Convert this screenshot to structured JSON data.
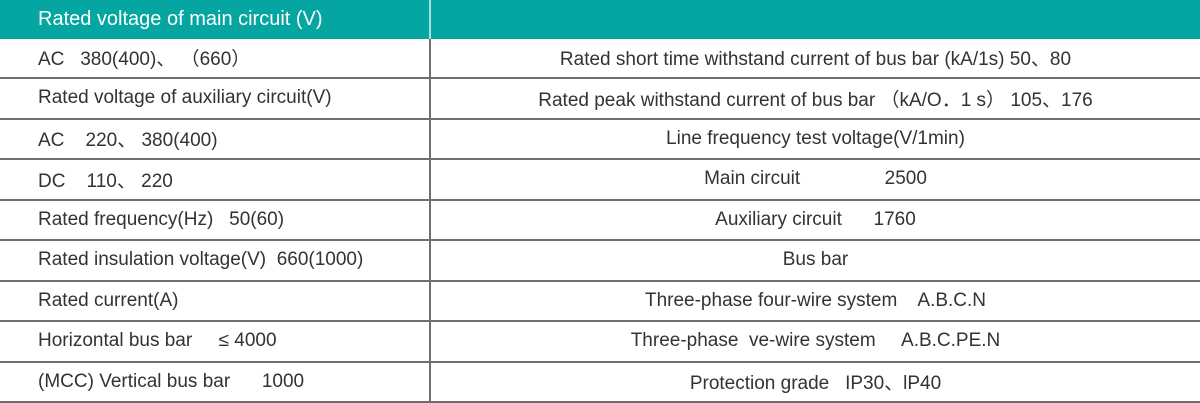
{
  "colors": {
    "header_background": "#05a6a1",
    "header_text": "#ffffff",
    "body_text": "#333333",
    "border": "#6f6f6f",
    "header_divider": "#a8dedc"
  },
  "table": {
    "header": {
      "left": "Rated voltage of main circuit (V)",
      "right": ""
    },
    "rows": [
      {
        "left": "AC   380(400)、 （660）",
        "right": "Rated short time withstand current of bus bar (kA/1s) 50、80"
      },
      {
        "left": "Rated voltage of auxiliary circuit(V)",
        "right": "Rated peak withstand current of bus bar （kA/O．1 s） 105、176"
      },
      {
        "left": "AC    220、 380(400)",
        "right": "Line frequency test voltage(V/1min)"
      },
      {
        "left": "DC    110、 220",
        "right": "Main circuit                2500"
      },
      {
        "left": "Rated frequency(Hz)   50(60)",
        "right": "Auxiliary circuit      1760"
      },
      {
        "left": "Rated insulation voltage(V)  660(1000)",
        "right": "Bus bar"
      },
      {
        "left": "Rated current(A)",
        "right": "Three-phase four-wire system    A.B.C.N"
      },
      {
        "left": "Horizontal bus bar     ≤ 4000",
        "right": "Three-phase  ve-wire system     A.B.C.PE.N"
      },
      {
        "left": "(MCC) Vertical bus bar      1000",
        "right": "Protection grade   IP30、lP40"
      }
    ]
  }
}
